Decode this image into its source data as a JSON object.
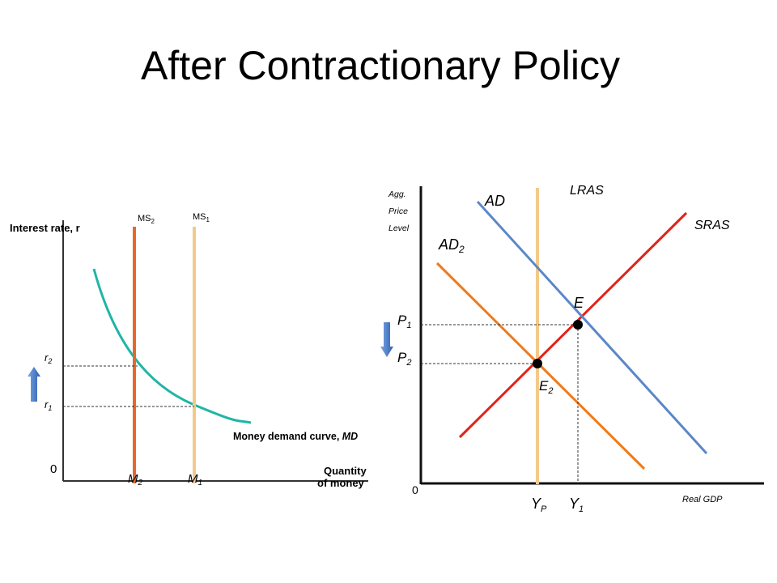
{
  "title": "After Contractionary Policy",
  "chart_data": [
    {
      "type": "line",
      "title": "",
      "xlabel": "Quantity of money",
      "ylabel": "Interest rate, r",
      "origin_label": "0",
      "x_ticks": [
        {
          "base": "M",
          "sub": "2"
        },
        {
          "base": "M",
          "sub": "1"
        }
      ],
      "y_ticks": [
        {
          "base": "r",
          "sub": "2"
        },
        {
          "base": "r",
          "sub": "1"
        }
      ],
      "series": [
        {
          "name": "MS₂",
          "base": "MS",
          "sub": "2",
          "color": "#e8682a",
          "kind": "vertical",
          "x": "M2"
        },
        {
          "name": "MS₁",
          "base": "MS",
          "sub": "1",
          "color": "#f3c98a",
          "kind": "vertical",
          "x": "M1"
        },
        {
          "name": "Money demand curve, MD",
          "prefix": "Money demand curve, ",
          "suffix": "MD",
          "color": "#1fb5a6",
          "kind": "curve"
        }
      ],
      "annotations": [
        {
          "type": "arrow",
          "direction": "up",
          "color": "#4a7dc9",
          "meaning": "interest rate rises from r1 to r2"
        }
      ]
    },
    {
      "type": "line",
      "title": "",
      "xlabel": "Real GDP",
      "ylabel_lines": [
        "Agg.",
        "Price",
        "Level"
      ],
      "origin_label": "0",
      "x_ticks": [
        {
          "base": "Y",
          "sub": "P"
        },
        {
          "base": "Y",
          "sub": "1"
        }
      ],
      "y_ticks": [
        {
          "base": "P",
          "sub": "1"
        },
        {
          "base": "P",
          "sub": "2"
        }
      ],
      "series": [
        {
          "name": "LRAS",
          "color": "#f3c98a",
          "kind": "vertical"
        },
        {
          "name": "SRAS",
          "color": "#e2231a",
          "kind": "upward"
        },
        {
          "name": "AD",
          "color": "#5b87c9",
          "kind": "downward"
        },
        {
          "name": "AD₂",
          "base": "AD",
          "sub": "2",
          "color": "#f07a1a",
          "kind": "downward"
        }
      ],
      "points": [
        {
          "name": "E",
          "base": "E",
          "sub": "",
          "at": [
            "Y1",
            "P1"
          ]
        },
        {
          "name": "E₂",
          "base": "E",
          "sub": "2",
          "at": [
            "YP",
            "P2"
          ]
        }
      ],
      "annotations": [
        {
          "type": "arrow",
          "direction": "down",
          "color": "#4a7dc9",
          "meaning": "price level falls from P1 to P2"
        }
      ]
    }
  ]
}
